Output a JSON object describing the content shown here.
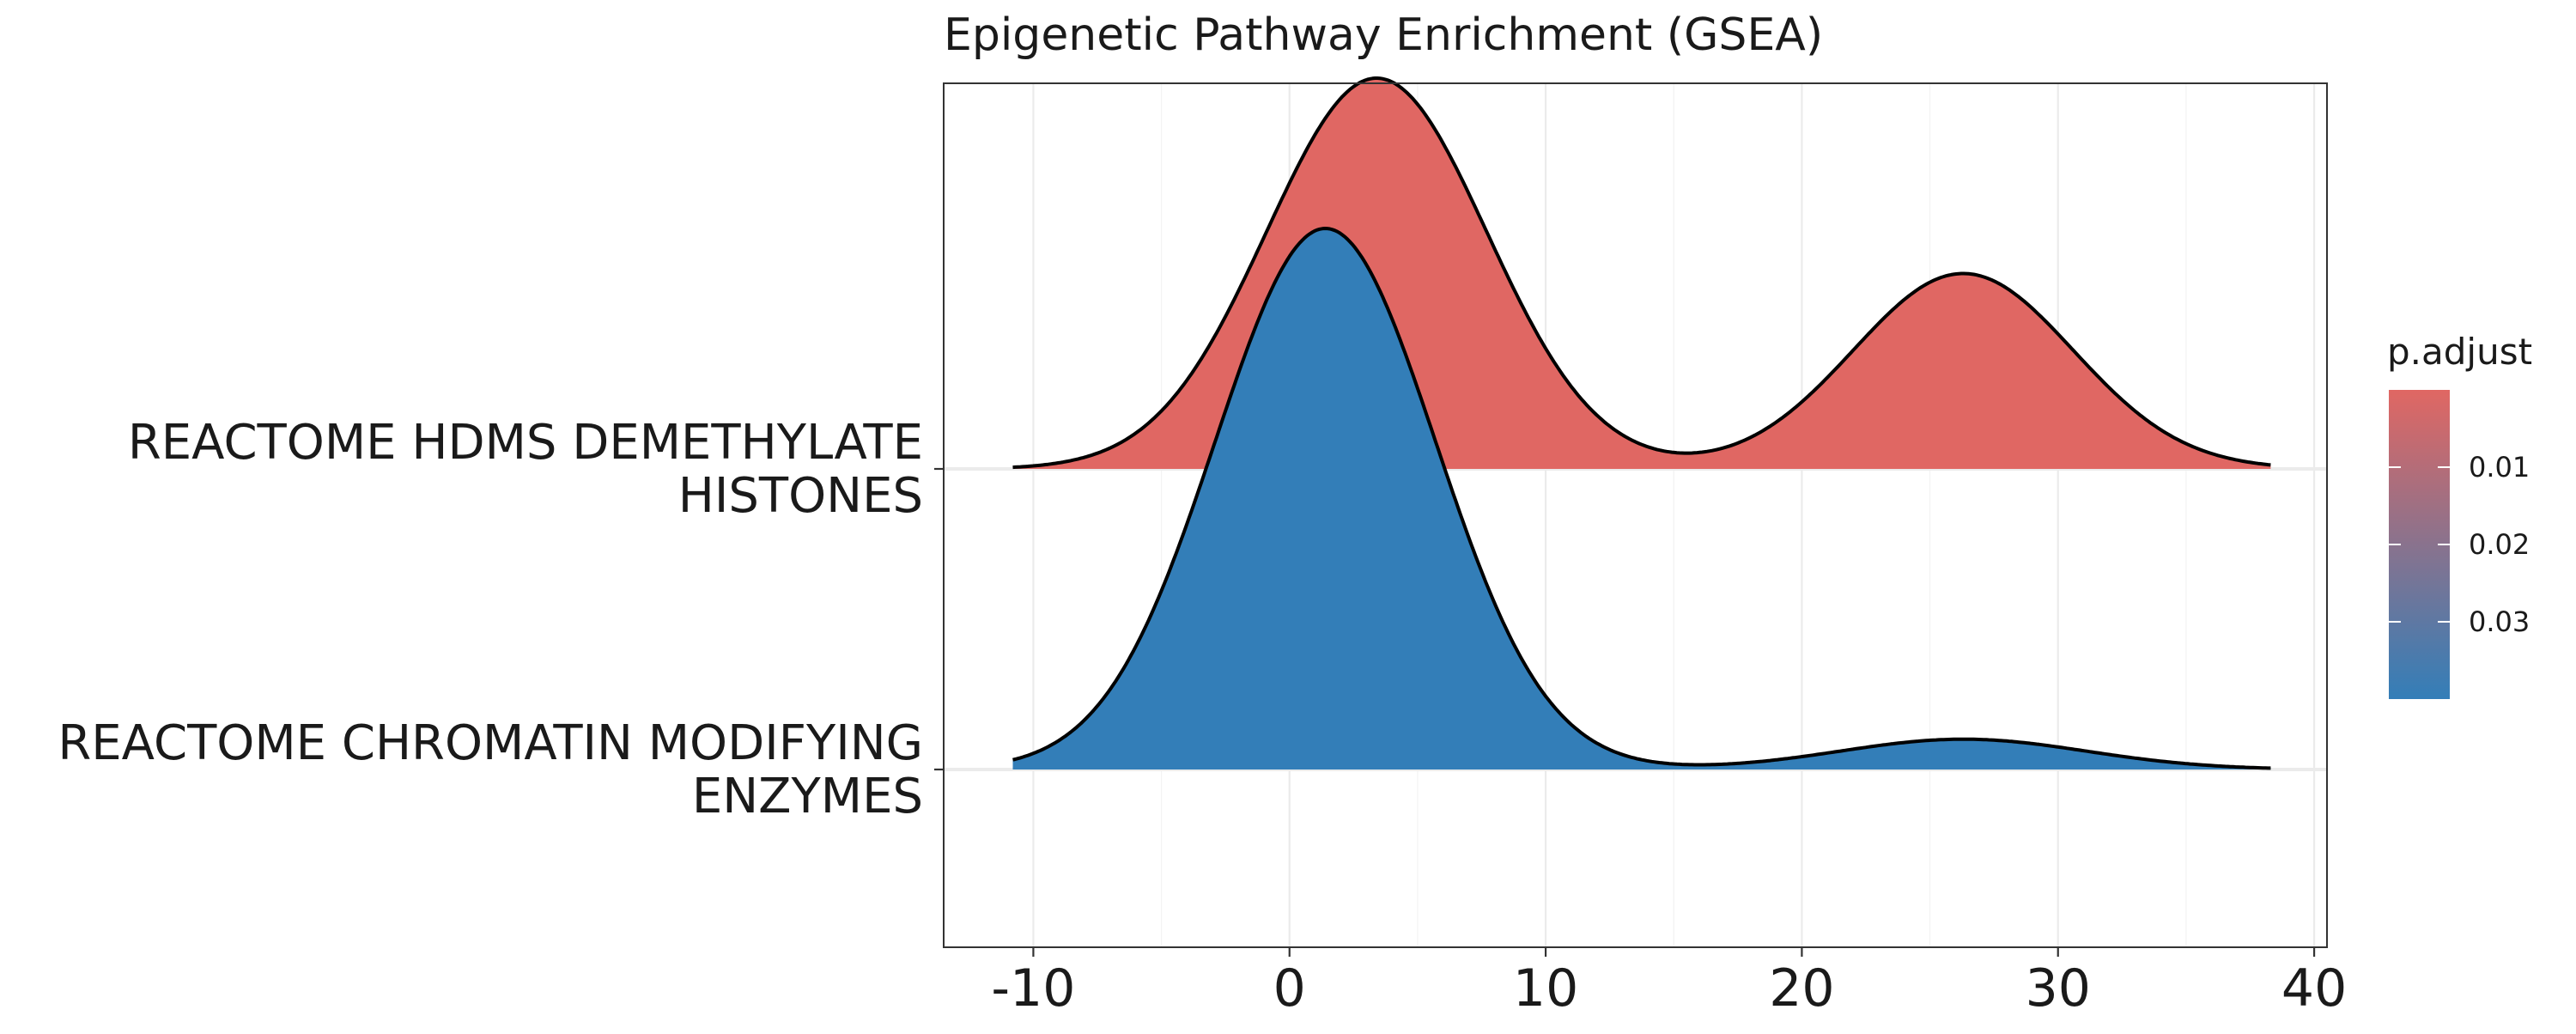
{
  "chart_data": {
    "type": "ridgeline",
    "title": "Epigenetic Pathway Enrichment (GSEA)",
    "xlabel": "",
    "ylabel": "",
    "xlim": [
      -13.5,
      40.5
    ],
    "x_ticks": [
      -10,
      0,
      10,
      20,
      30,
      40
    ],
    "x_tick_labels": [
      "-10",
      "0",
      "10",
      "20",
      "30",
      "40"
    ],
    "grid": true,
    "categories": [
      "REACTOME HDMS DEMETHYLATE HISTONES",
      "REACTOME CHROMATIN MODIFYING ENZYMES"
    ],
    "category_label_lines": [
      [
        "REACTOME HDMS DEMETHYLATE",
        "HISTONES"
      ],
      [
        "REACTOME CHROMATIN MODIFYING",
        "ENZYMES"
      ]
    ],
    "series": [
      {
        "category": "REACTOME HDMS DEMETHYLATE HISTONES",
        "p_adjust": 0.005,
        "color": "#E06763",
        "x_range": [
          -10.8,
          38.3
        ],
        "peak_height": 1.3,
        "components": [
          {
            "mean": 3.4,
            "sd": 4.3,
            "weight": 1.0
          },
          {
            "mean": 26.3,
            "sd": 4.3,
            "weight": 0.5
          }
        ]
      },
      {
        "category": "REACTOME CHROMATIN MODIFYING ENZYMES",
        "p_adjust": 0.035,
        "color": "#337EB8",
        "x_range": [
          -10.8,
          38.3
        ],
        "peak_height": 1.8,
        "components": [
          {
            "mean": 1.4,
            "sd": 4.3,
            "weight": 1.0
          },
          {
            "mean": 26.3,
            "sd": 4.8,
            "weight": 0.056
          }
        ]
      }
    ],
    "legend": {
      "title": "p.adjust",
      "position": "right",
      "colors": [
        "#E06763",
        "#337EB8"
      ],
      "ticks": [
        0.01,
        0.02,
        0.03
      ],
      "tick_labels": [
        "0.01",
        "0.02",
        "0.03"
      ],
      "range": [
        0.0,
        0.04
      ]
    }
  }
}
